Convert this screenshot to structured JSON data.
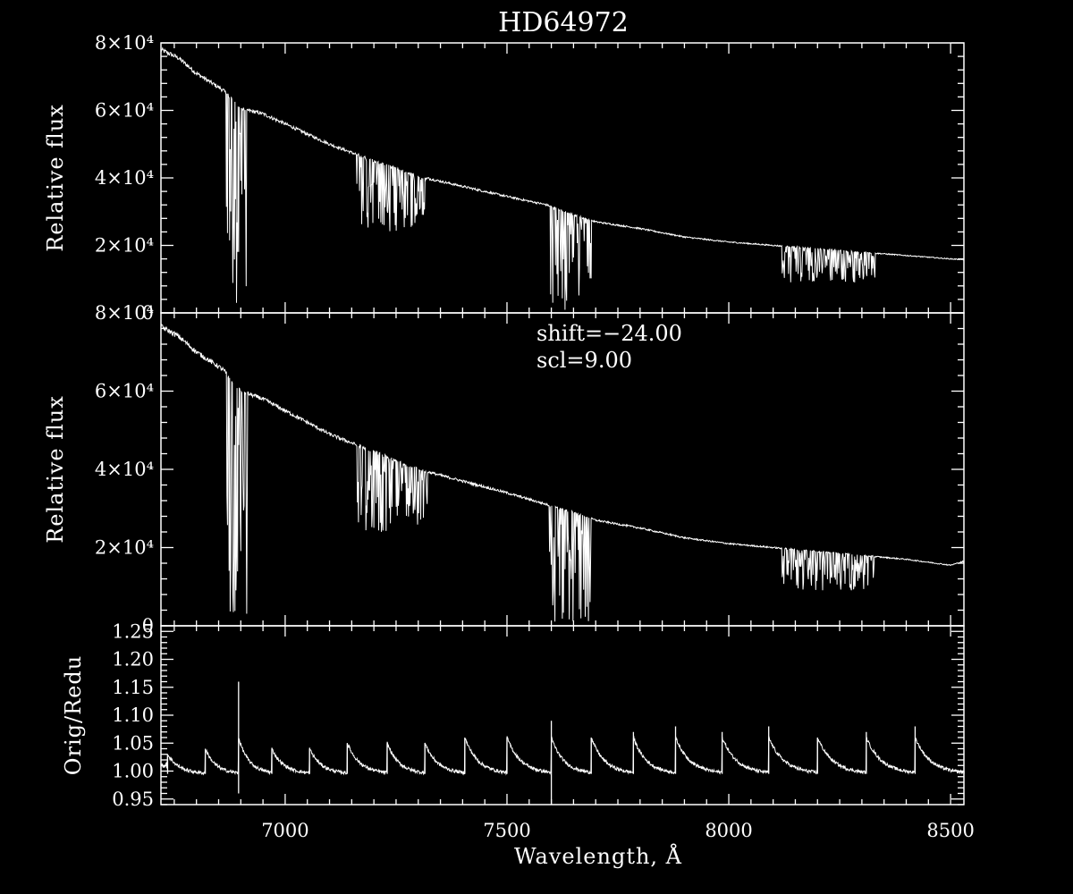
{
  "title": "HD64972",
  "colors": {
    "background": "#000000",
    "foreground": "#ffffff"
  },
  "annotation": {
    "shift": "shift=−24.00",
    "scl": "scl=9.00"
  },
  "chart_data": [
    {
      "type": "line",
      "panel": "top",
      "ylabel": "Relative flux",
      "xlim": [
        6720,
        8530
      ],
      "ylim": [
        0,
        80000
      ],
      "yticks": [
        {
          "v": 0,
          "label": "0"
        },
        {
          "v": 20000,
          "label": "2×10⁴"
        },
        {
          "v": 40000,
          "label": "4×10⁴"
        },
        {
          "v": 60000,
          "label": "6×10⁴"
        },
        {
          "v": 80000,
          "label": "8×10⁴"
        }
      ],
      "continuum": [
        [
          6720,
          78000
        ],
        [
          6760,
          75500
        ],
        [
          6800,
          71000
        ],
        [
          6860,
          66000
        ],
        [
          6900,
          60500
        ],
        [
          6950,
          59000
        ],
        [
          7000,
          56000
        ],
        [
          7100,
          50000
        ],
        [
          7200,
          45000
        ],
        [
          7300,
          40500
        ],
        [
          7400,
          37500
        ],
        [
          7500,
          34500
        ],
        [
          7590,
          32000
        ],
        [
          7650,
          29000
        ],
        [
          7700,
          27000
        ],
        [
          7800,
          25000
        ],
        [
          7900,
          22500
        ],
        [
          8000,
          21000
        ],
        [
          8100,
          20000
        ],
        [
          8200,
          19000
        ],
        [
          8300,
          18000
        ],
        [
          8400,
          17000
        ],
        [
          8500,
          16000
        ],
        [
          8530,
          15800
        ]
      ],
      "absorption_bands": [
        {
          "start": 6867,
          "end": 6915,
          "min": 2000
        },
        {
          "start": 7160,
          "end": 7320,
          "min": 24000
        },
        {
          "start": 7595,
          "end": 7690,
          "min": 0
        },
        {
          "start": 8120,
          "end": 8330,
          "min": 9000
        }
      ]
    },
    {
      "type": "line",
      "panel": "middle",
      "ylabel": "Relative flux",
      "xlim": [
        6720,
        8530
      ],
      "ylim": [
        0,
        80000
      ],
      "yticks": [
        {
          "v": 0,
          "label": "0"
        },
        {
          "v": 20000,
          "label": "2×10⁴"
        },
        {
          "v": 40000,
          "label": "4×10⁴"
        },
        {
          "v": 60000,
          "label": "6×10⁴"
        },
        {
          "v": 80000,
          "label": "8×10⁴"
        }
      ],
      "continuum": [
        [
          6720,
          76500
        ],
        [
          6760,
          74000
        ],
        [
          6800,
          70000
        ],
        [
          6860,
          65500
        ],
        [
          6900,
          60000
        ],
        [
          6950,
          58000
        ],
        [
          7000,
          55000
        ],
        [
          7100,
          49000
        ],
        [
          7200,
          44500
        ],
        [
          7300,
          40000
        ],
        [
          7400,
          37000
        ],
        [
          7500,
          34000
        ],
        [
          7590,
          31000
        ],
        [
          7650,
          29000
        ],
        [
          7700,
          27000
        ],
        [
          7800,
          25000
        ],
        [
          7900,
          22500
        ],
        [
          8000,
          21000
        ],
        [
          8100,
          20000
        ],
        [
          8200,
          19000
        ],
        [
          8300,
          18000
        ],
        [
          8400,
          17000
        ],
        [
          8500,
          15500
        ],
        [
          8530,
          16500
        ]
      ],
      "absorption_bands": [
        {
          "start": 6867,
          "end": 6915,
          "min": 1500
        },
        {
          "start": 7160,
          "end": 7320,
          "min": 23500
        },
        {
          "start": 7595,
          "end": 7690,
          "min": 0
        },
        {
          "start": 8120,
          "end": 8330,
          "min": 9000
        }
      ]
    },
    {
      "type": "line",
      "panel": "bottom",
      "xlabel": "Wavelength, Å",
      "ylabel": "Orig/Redu",
      "xlim": [
        6720,
        8530
      ],
      "ylim": [
        0.94,
        1.26
      ],
      "xticks": [
        {
          "v": 7000,
          "label": "7000"
        },
        {
          "v": 7500,
          "label": "7500"
        },
        {
          "v": 8000,
          "label": "8000"
        },
        {
          "v": 8500,
          "label": "8500"
        }
      ],
      "yticks": [
        {
          "v": 0.95,
          "label": "0.95"
        },
        {
          "v": 1.0,
          "label": "1.00"
        },
        {
          "v": 1.05,
          "label": "1.05"
        },
        {
          "v": 1.1,
          "label": "1.10"
        },
        {
          "v": 1.15,
          "label": "1.15"
        },
        {
          "v": 1.2,
          "label": "1.20"
        },
        {
          "v": 1.25,
          "label": "1.25"
        }
      ],
      "sawtooth_peaks": [
        [
          6735,
          1.03
        ],
        [
          6820,
          1.04
        ],
        [
          6895,
          1.16
        ],
        [
          6970,
          1.04
        ],
        [
          7055,
          1.04
        ],
        [
          7140,
          1.05
        ],
        [
          7230,
          1.05
        ],
        [
          7315,
          1.05
        ],
        [
          7405,
          1.06
        ],
        [
          7500,
          1.06
        ],
        [
          7600,
          1.09
        ],
        [
          7690,
          1.06
        ],
        [
          7785,
          1.07
        ],
        [
          7880,
          1.08
        ],
        [
          7985,
          1.07
        ],
        [
          8090,
          1.08
        ],
        [
          8200,
          1.06
        ],
        [
          8310,
          1.07
        ],
        [
          8420,
          1.08
        ],
        [
          8530,
          1.0
        ]
      ]
    }
  ]
}
